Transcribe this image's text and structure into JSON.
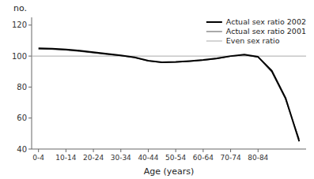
{
  "chart_data": {
    "type": "line",
    "xlabel": "Age (years)",
    "ylabel": "no.",
    "categories": [
      "0-4",
      null,
      "10-14",
      null,
      "20-24",
      null,
      "30-34",
      null,
      "40-44",
      null,
      "50-54",
      null,
      "60-64",
      null,
      "70-74",
      null,
      "80-84",
      null,
      null,
      null
    ],
    "series": [
      {
        "name": "Actual sex ratio 2002",
        "color": "#000000",
        "values": [
          105.0,
          104.8,
          104.2,
          103.5,
          102.5,
          101.5,
          100.5,
          99.2,
          97.0,
          96.0,
          96.2,
          96.8,
          97.5,
          98.5,
          100.0,
          101.0,
          99.5,
          90.5,
          73.0,
          45.0
        ]
      },
      {
        "name": "Actual sex ratio 2001",
        "color": "#555555",
        "values": [
          104.5,
          104.3,
          103.8,
          103.0,
          102.0,
          101.0,
          100.2,
          99.0,
          96.8,
          95.8,
          96.0,
          96.5,
          97.2,
          98.2,
          99.8,
          100.8,
          99.2,
          89.5,
          72.0,
          46.5
        ]
      }
    ],
    "reference_line": {
      "name": "Even sex ratio",
      "value": 100.0,
      "color": "#aaaaaa"
    },
    "ylim": [
      40,
      125
    ],
    "yticks": [
      40,
      60,
      80,
      100,
      120
    ],
    "legend": "upper right",
    "grid": false
  }
}
